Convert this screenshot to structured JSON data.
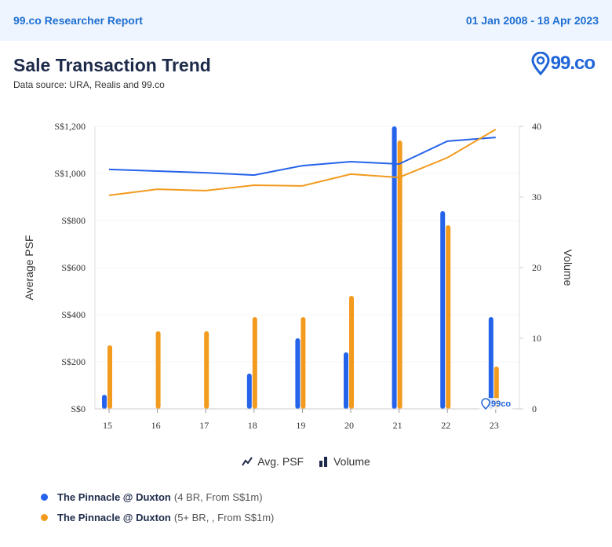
{
  "topbar": {
    "report_title": "99.co Researcher Report",
    "date_range": "01 Jan 2008 - 18 Apr 2023"
  },
  "header": {
    "title": "Sale Transaction Trend",
    "source": "Data source: URA, Realis and 99.co",
    "logo_text": "99.co"
  },
  "watermark": "99co",
  "legend": {
    "avg_psf": "Avg. PSF",
    "volume": "Volume"
  },
  "series_legend": [
    {
      "name": "The Pinnacle @ Duxton",
      "detail": "(4 BR, From S$1m)",
      "color": "#2563eb"
    },
    {
      "name": "The Pinnacle @ Duxton",
      "detail": "(5+ BR, , From S$1m)",
      "color": "#f29b1e"
    }
  ],
  "chart_data": {
    "type": "bar+line",
    "title": "Sale Transaction Trend",
    "x": [
      "15",
      "16",
      "17",
      "18",
      "19",
      "20",
      "21",
      "22",
      "23"
    ],
    "ylabel": "Average PSF",
    "y2label": "Volume",
    "ylim": [
      0,
      1200
    ],
    "y2lim": [
      0,
      40
    ],
    "yticks": [
      "S$0",
      "S$200",
      "S$400",
      "S$600",
      "S$800",
      "S$1,000",
      "S$1,200"
    ],
    "ytick_values": [
      0,
      200,
      400,
      600,
      800,
      1000,
      1200
    ],
    "y2ticks": [
      0,
      10,
      20,
      30,
      40
    ],
    "series": [
      {
        "name": "The Pinnacle @ Duxton (4 BR, From S$1m)",
        "color": "#2563eb",
        "psf": [
          1017,
          1010,
          1003,
          993,
          1033,
          1050,
          1040,
          1137,
          1153
        ],
        "volume": [
          2,
          0,
          0,
          5,
          10,
          8,
          40,
          28,
          13
        ]
      },
      {
        "name": "The Pinnacle @ Duxton (5+ BR, , From S$1m)",
        "color": "#f29b1e",
        "psf": [
          907,
          933,
          927,
          950,
          947,
          997,
          983,
          1067,
          1187
        ],
        "volume": [
          9,
          11,
          11,
          13,
          13,
          16,
          38,
          26,
          6
        ]
      }
    ]
  }
}
